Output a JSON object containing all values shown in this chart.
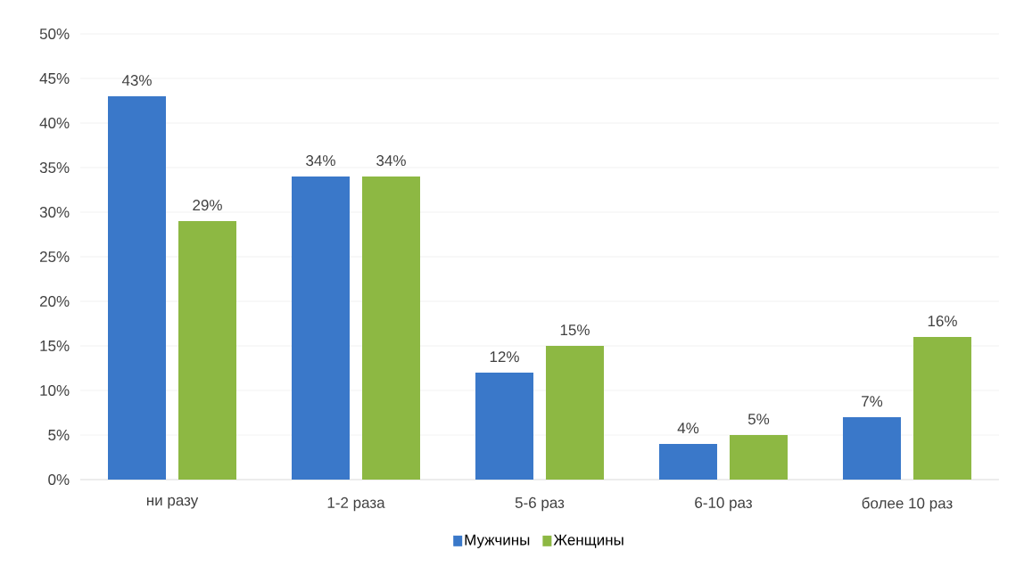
{
  "chart_data": {
    "type": "bar",
    "categories": [
      "ни разу",
      "1-2 раза",
      "5-6 раз",
      "6-10 раз",
      "более 10 раз"
    ],
    "series": [
      {
        "name": "Мужчины",
        "color": "#3a78c9",
        "values": [
          43,
          34,
          12,
          4,
          7
        ],
        "value_labels": [
          "43%",
          "34%",
          "12%",
          "4%",
          "7%"
        ]
      },
      {
        "name": "Женщины",
        "color": "#8db843",
        "values": [
          29,
          34,
          15,
          5,
          16
        ],
        "value_labels": [
          "29%",
          "34%",
          "15%",
          "5%",
          "16%"
        ]
      }
    ],
    "ylim": [
      0,
      50
    ],
    "yticks": [
      {
        "value": 0,
        "label": "0%"
      },
      {
        "value": 5,
        "label": "5%"
      },
      {
        "value": 10,
        "label": "10%"
      },
      {
        "value": 15,
        "label": "15%"
      },
      {
        "value": 20,
        "label": "20%"
      },
      {
        "value": 25,
        "label": "25%"
      },
      {
        "value": 30,
        "label": "30%"
      },
      {
        "value": 35,
        "label": "35%"
      },
      {
        "value": 40,
        "label": "40%"
      },
      {
        "value": 45,
        "label": "45%"
      },
      {
        "value": 50,
        "label": "50%"
      }
    ],
    "grid": "y",
    "legend": "bottom"
  }
}
